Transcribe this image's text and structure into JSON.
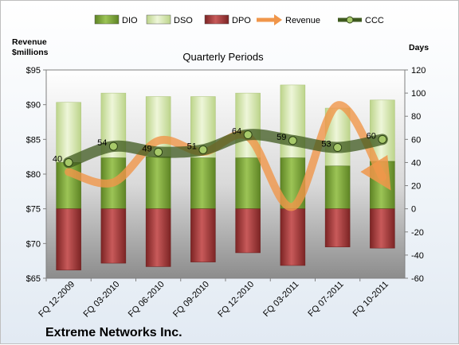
{
  "chart_data": {
    "type": "bar",
    "title": "Quarterly Periods",
    "company": "Extreme Networks Inc.",
    "left_axis": {
      "label_line1": "Revenue",
      "label_line2": "$millions",
      "min": 65,
      "max": 95,
      "step": 5,
      "prefix": "$"
    },
    "right_axis": {
      "label": "Days",
      "min": -60,
      "max": 120,
      "step": 20
    },
    "categories": [
      "FQ 12-2009",
      "FQ 03-2010",
      "FQ 06-2010",
      "FQ 09-2010",
      "FQ 12-2010",
      "FQ 03-2011",
      "FQ 07-2011",
      "FQ 10-2011"
    ],
    "series": [
      {
        "name": "DIO",
        "axis": "right",
        "kind": "stacked-bar",
        "color": "#7ea63c",
        "values": [
          40,
          44,
          45,
          44,
          44,
          44,
          37,
          41
        ]
      },
      {
        "name": "DSO",
        "axis": "right",
        "kind": "stacked-bar",
        "color": "#d7e8b0",
        "values": [
          52,
          56,
          52,
          53,
          56,
          63,
          50,
          53
        ]
      },
      {
        "name": "DPO",
        "axis": "right",
        "kind": "bar",
        "color": "#a83c3c",
        "values": [
          -53,
          -47,
          -50,
          -46,
          -38,
          -49,
          -33,
          -34
        ]
      },
      {
        "name": "Revenue",
        "axis": "left",
        "kind": "line",
        "color": "#f0964a",
        "values": [
          80.3,
          78.8,
          84.8,
          83.2,
          85.4,
          75.3,
          89.9,
          79.6
        ]
      },
      {
        "name": "CCC",
        "axis": "right",
        "kind": "line",
        "color": "#5a7a32",
        "values": [
          40,
          54,
          49,
          51,
          64,
          59,
          53,
          60
        ],
        "labels": [
          "40",
          "54",
          "49",
          "51",
          "64",
          "59",
          "53",
          "60"
        ]
      }
    ],
    "legend": {
      "placement": "top"
    },
    "grid": false
  }
}
